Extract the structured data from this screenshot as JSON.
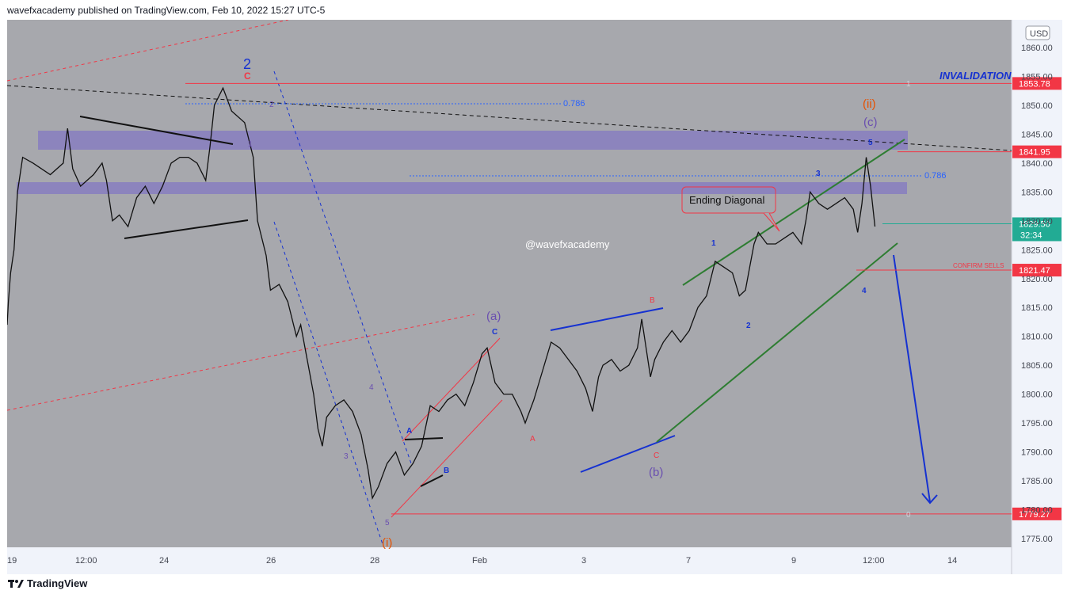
{
  "header": {
    "publisher": "wavefxacademy published on TradingView.com, Feb 10, 2022 15:27 UTC-5"
  },
  "footer": {
    "brand": "TradingView",
    "logo_icon": "tradingview-logo-icon"
  },
  "currency": "USD",
  "watermark": "@wavefxacademy",
  "colors": {
    "background": "#a7a8ad",
    "price_axis": "#f0f3fa",
    "zone": "#8a7fbf",
    "red": "#f23645",
    "blue": "#1531d1",
    "green": "#2e7d32",
    "orange": "#e65100",
    "purple": "#6a4fb0",
    "black": "#111111"
  },
  "chart_data": {
    "type": "candlestick",
    "title": "",
    "ylim": [
      1772,
      1863
    ],
    "price_ticks": [
      1860,
      1855,
      1850,
      1845,
      1840,
      1835,
      1830,
      1825,
      1820,
      1815,
      1810,
      1805,
      1800,
      1795,
      1790,
      1785,
      1780,
      1775
    ],
    "price_tick_labels": [
      "1860.00",
      "1855.00",
      "1850.00",
      "1845.00",
      "1840.00",
      "1835.00",
      "1830.00",
      "1825.00",
      "1820.00",
      "1815.00",
      "1810.00",
      "1805.00",
      "1800.00",
      "1795.00",
      "1790.00",
      "1785.00",
      "1780.00",
      "1775.00"
    ],
    "time_labels": [
      "19",
      "12:00",
      "24",
      "26",
      "28",
      "Feb",
      "3",
      "7",
      "9",
      "12:00",
      "14"
    ],
    "series_path": [
      [
        0,
        1812
      ],
      [
        0.15,
        1816
      ],
      [
        0.4,
        1821
      ],
      [
        0.8,
        1825
      ],
      [
        1.2,
        1835
      ],
      [
        1.8,
        1841
      ],
      [
        3,
        1840
      ],
      [
        5,
        1838
      ],
      [
        6.5,
        1840
      ],
      [
        7,
        1846
      ],
      [
        7.6,
        1839
      ],
      [
        8.5,
        1836
      ],
      [
        10,
        1838
      ],
      [
        11,
        1840
      ],
      [
        11.5,
        1837
      ],
      [
        12.2,
        1830
      ],
      [
        13,
        1831
      ],
      [
        14,
        1829
      ],
      [
        15,
        1834
      ],
      [
        16,
        1836
      ],
      [
        17,
        1833
      ],
      [
        18,
        1836
      ],
      [
        19,
        1840
      ],
      [
        20,
        1841
      ],
      [
        21,
        1841
      ],
      [
        22,
        1840
      ],
      [
        23,
        1837
      ],
      [
        23.5,
        1843
      ],
      [
        24,
        1850
      ],
      [
        25,
        1853
      ],
      [
        26,
        1849
      ],
      [
        27.5,
        1847
      ],
      [
        28.5,
        1841
      ],
      [
        29,
        1830
      ],
      [
        30,
        1824
      ],
      [
        30.5,
        1818
      ],
      [
        31.5,
        1819
      ],
      [
        32.5,
        1816
      ],
      [
        33.5,
        1810
      ],
      [
        34,
        1812
      ],
      [
        35,
        1804
      ],
      [
        35.5,
        1800
      ],
      [
        36,
        1794
      ],
      [
        36.5,
        1791
      ],
      [
        37,
        1796
      ],
      [
        38,
        1798
      ],
      [
        39,
        1799
      ],
      [
        40,
        1797
      ],
      [
        41,
        1793
      ],
      [
        41.8,
        1787
      ],
      [
        42.3,
        1782
      ],
      [
        43,
        1784
      ],
      [
        44,
        1788
      ],
      [
        45,
        1790
      ],
      [
        46,
        1786
      ],
      [
        47,
        1788
      ],
      [
        48,
        1791
      ],
      [
        49,
        1798
      ],
      [
        50,
        1797
      ],
      [
        51,
        1799
      ],
      [
        52,
        1800
      ],
      [
        53,
        1798
      ],
      [
        54,
        1802
      ],
      [
        55,
        1807
      ],
      [
        55.6,
        1808
      ],
      [
        56.5,
        1802
      ],
      [
        57.5,
        1800
      ],
      [
        58.5,
        1800
      ],
      [
        59.5,
        1797
      ],
      [
        60,
        1795
      ],
      [
        61,
        1799
      ],
      [
        62,
        1804
      ],
      [
        63,
        1809
      ],
      [
        64,
        1808
      ],
      [
        65,
        1806
      ],
      [
        66,
        1804
      ],
      [
        67,
        1801
      ],
      [
        67.8,
        1797
      ],
      [
        68.5,
        1803
      ],
      [
        69,
        1805
      ],
      [
        70,
        1806
      ],
      [
        71,
        1804
      ],
      [
        72,
        1805
      ],
      [
        73,
        1808
      ],
      [
        73.5,
        1813
      ],
      [
        74,
        1808
      ],
      [
        74.5,
        1803
      ],
      [
        75,
        1806
      ],
      [
        76,
        1809
      ],
      [
        77,
        1811
      ],
      [
        78,
        1809
      ],
      [
        79,
        1811
      ],
      [
        80,
        1815
      ],
      [
        81,
        1817
      ],
      [
        82,
        1823
      ],
      [
        83,
        1822
      ],
      [
        84,
        1821
      ],
      [
        84.8,
        1817
      ],
      [
        85.5,
        1818
      ],
      [
        86,
        1822
      ],
      [
        86.5,
        1826
      ],
      [
        87,
        1828
      ],
      [
        88,
        1826
      ],
      [
        89,
        1826
      ],
      [
        90,
        1827
      ],
      [
        91,
        1828
      ],
      [
        92,
        1826
      ],
      [
        92.5,
        1830
      ],
      [
        93,
        1835
      ],
      [
        94,
        1833
      ],
      [
        95,
        1832
      ],
      [
        96,
        1833
      ],
      [
        97,
        1834
      ],
      [
        98,
        1832
      ],
      [
        98.5,
        1828
      ],
      [
        99,
        1833
      ],
      [
        99.5,
        1841
      ],
      [
        100,
        1836
      ],
      [
        100.5,
        1829
      ]
    ],
    "levels": [
      {
        "price": 1853.78,
        "label": "1853.78",
        "note": "INVALIDATION",
        "color": "#f23645"
      },
      {
        "price": 1841.95,
        "label": "1841.95",
        "color": "#f23645"
      },
      {
        "price": 1829.5,
        "label": "1829.50",
        "sub": "32:34",
        "color": "#22ab94"
      },
      {
        "price": 1821.47,
        "label": "1821.47",
        "note": "CONFIRM SELLS",
        "color": "#f23645"
      },
      {
        "price": 1779.27,
        "label": "1779.27",
        "color": "#f23645"
      }
    ],
    "fib_labels": {
      "top_786": "0.786",
      "mid_786": "0.786",
      "one": "1",
      "zero": "0"
    },
    "annotations": {
      "wave2": "2",
      "wave2_c": "C",
      "sub_2": "2",
      "sub_1": "1",
      "wave_ii": "(ii)",
      "wave_c_paren": "(c)",
      "wave_5_top": "5",
      "wave_3_top": "3",
      "ending_diagonal": "Ending Diagonal",
      "wave_1": "1",
      "wave_2": "2",
      "wave_4": "4",
      "wave_a_paren": "(a)",
      "wave_c_upper": "C",
      "wave_b_red": "B",
      "wave_c_red": "C",
      "wave_b_paren": "(b)",
      "wave_a_red": "A",
      "wave_A_blue": "A",
      "wave_B_blue": "B",
      "wave_3_low": "3",
      "wave_4_low": "4",
      "wave_5_low": "5",
      "wave_i": "(i)"
    }
  }
}
